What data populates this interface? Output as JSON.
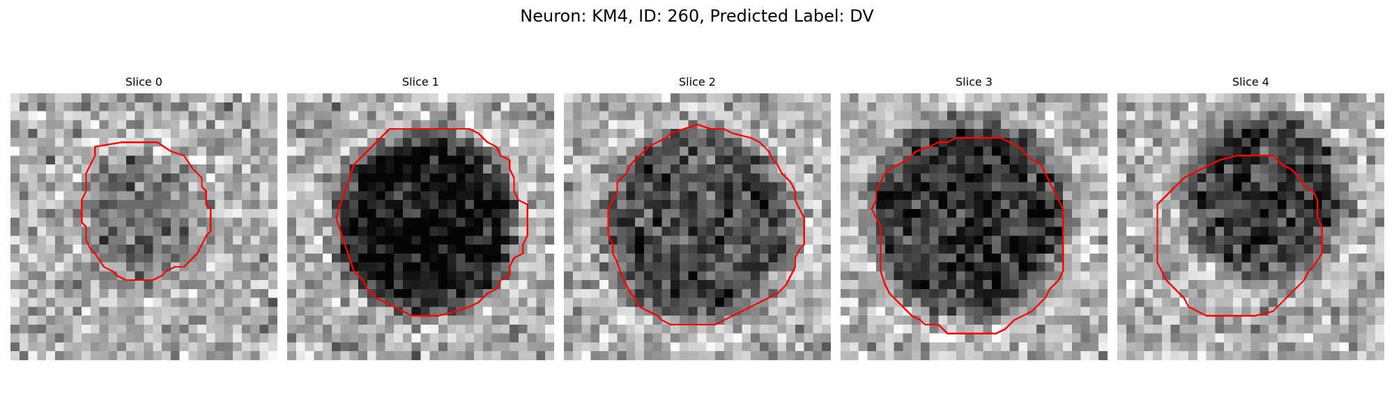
{
  "figure": {
    "title": "Neuron: KM4, ID: 260, Predicted Label: DV"
  },
  "panels": [
    {
      "title": "Slice 0",
      "blob_center": [
        14.5,
        14.0
      ],
      "blob_radius": 7.0,
      "blob_darkness": 0.22,
      "contour": [
        [
          9.5,
          6
        ],
        [
          12.5,
          5.5
        ],
        [
          16.5,
          5.5
        ],
        [
          18,
          6.5
        ],
        [
          19.5,
          7
        ],
        [
          20.5,
          8.5
        ],
        [
          21.5,
          9.5
        ],
        [
          21.5,
          10.5
        ],
        [
          22,
          11
        ],
        [
          22,
          12.5
        ],
        [
          22.5,
          13
        ],
        [
          22.5,
          15.5
        ],
        [
          22,
          16
        ],
        [
          21.5,
          17
        ],
        [
          21,
          18
        ],
        [
          20.5,
          18.5
        ],
        [
          20,
          19
        ],
        [
          19.5,
          19.5
        ],
        [
          18.5,
          19.5
        ],
        [
          17.5,
          20
        ],
        [
          17,
          20.5
        ],
        [
          16,
          21
        ],
        [
          14.5,
          21
        ],
        [
          13,
          21
        ],
        [
          12,
          20.5
        ],
        [
          11.5,
          20
        ],
        [
          10.5,
          19.5
        ],
        [
          9.5,
          18
        ],
        [
          9,
          17.5
        ],
        [
          8.5,
          16.5
        ],
        [
          8.5,
          15
        ],
        [
          8,
          14.5
        ],
        [
          8,
          12
        ],
        [
          8.5,
          11
        ],
        [
          8.5,
          9
        ],
        [
          9,
          8
        ],
        [
          9.5,
          7
        ]
      ]
    },
    {
      "title": "Slice 1",
      "blob_center": [
        15.5,
        14.5
      ],
      "blob_radius": 10.0,
      "blob_darkness": 0.62,
      "contour": [
        [
          11.5,
          4
        ],
        [
          16,
          4
        ],
        [
          20.5,
          4
        ],
        [
          21.5,
          4.5
        ],
        [
          22.5,
          5.5
        ],
        [
          23.5,
          6
        ],
        [
          24,
          7
        ],
        [
          25,
          7.5
        ],
        [
          25,
          8.5
        ],
        [
          25.5,
          9.5
        ],
        [
          25.5,
          11
        ],
        [
          26,
          12
        ],
        [
          27,
          12.5
        ],
        [
          27,
          14.5
        ],
        [
          27,
          16
        ],
        [
          26.5,
          17
        ],
        [
          26.5,
          18
        ],
        [
          25.5,
          18.5
        ],
        [
          25,
          19.5
        ],
        [
          25,
          20.5
        ],
        [
          24,
          21
        ],
        [
          23.5,
          22
        ],
        [
          22.5,
          22.5
        ],
        [
          21.5,
          23.5
        ],
        [
          20.5,
          24
        ],
        [
          19,
          24.5
        ],
        [
          17,
          25
        ],
        [
          15.5,
          25
        ],
        [
          14,
          25
        ],
        [
          13,
          24.5
        ],
        [
          12,
          24
        ],
        [
          11,
          23.5
        ],
        [
          10,
          23
        ],
        [
          9,
          22
        ],
        [
          8.5,
          21
        ],
        [
          7.5,
          20
        ],
        [
          7,
          18.5
        ],
        [
          6.5,
          17
        ],
        [
          6,
          15.5
        ],
        [
          5.5,
          14
        ],
        [
          6,
          12.5
        ],
        [
          6.5,
          11
        ],
        [
          7,
          9.5
        ],
        [
          7.5,
          8
        ],
        [
          8.5,
          7
        ],
        [
          9.5,
          6
        ],
        [
          10.5,
          5
        ],
        [
          11,
          4.5
        ]
      ]
    },
    {
      "title": "Slice 2",
      "blob_center": [
        15.0,
        15.0
      ],
      "blob_radius": 10.5,
      "blob_darkness": 0.4,
      "contour": [
        [
          12,
          4.5
        ],
        [
          13.5,
          4
        ],
        [
          15,
          3.5
        ],
        [
          16.5,
          4
        ],
        [
          18,
          4
        ],
        [
          19,
          4.5
        ],
        [
          21,
          5
        ],
        [
          22,
          5.5
        ],
        [
          23,
          6.5
        ],
        [
          23.5,
          7.5
        ],
        [
          24,
          8
        ],
        [
          24.5,
          9
        ],
        [
          25.5,
          10
        ],
        [
          26,
          11
        ],
        [
          26,
          12
        ],
        [
          26.5,
          13
        ],
        [
          27,
          14
        ],
        [
          27,
          15
        ],
        [
          27,
          16
        ],
        [
          27,
          17
        ],
        [
          26.5,
          17.5
        ],
        [
          26,
          18.5
        ],
        [
          26,
          19.5
        ],
        [
          25.5,
          20.5
        ],
        [
          25,
          21.5
        ],
        [
          24.5,
          22
        ],
        [
          24,
          22.5
        ],
        [
          23,
          23
        ],
        [
          22,
          23.5
        ],
        [
          21,
          24
        ],
        [
          20,
          24.5
        ],
        [
          19,
          25
        ],
        [
          18,
          25.5
        ],
        [
          17,
          26
        ],
        [
          15,
          26
        ],
        [
          13.5,
          26
        ],
        [
          12,
          26
        ],
        [
          11,
          25.5
        ],
        [
          10.5,
          25
        ],
        [
          9.5,
          24.5
        ],
        [
          8.5,
          24
        ],
        [
          8,
          23
        ],
        [
          7.5,
          22.5
        ],
        [
          7,
          21.5
        ],
        [
          6.5,
          20.5
        ],
        [
          6,
          19
        ],
        [
          5.5,
          18
        ],
        [
          5.5,
          17
        ],
        [
          5,
          16
        ],
        [
          5,
          14.5
        ],
        [
          5,
          13
        ],
        [
          5.5,
          12
        ],
        [
          6,
          11
        ],
        [
          6,
          10
        ],
        [
          7,
          9
        ],
        [
          7.5,
          8
        ],
        [
          8.5,
          7
        ],
        [
          9.5,
          6
        ],
        [
          10.5,
          5.5
        ],
        [
          11.5,
          5
        ]
      ]
    },
    {
      "title": "Slice 3",
      "blob_center": [
        14.5,
        14.0
      ],
      "blob_radius": 11.0,
      "blob_darkness": 0.48,
      "contour": [
        [
          10,
          6
        ],
        [
          11,
          5.5
        ],
        [
          12,
          5.5
        ],
        [
          13,
          5
        ],
        [
          14.5,
          5
        ],
        [
          16,
          5
        ],
        [
          18,
          5
        ],
        [
          19,
          5.5
        ],
        [
          20,
          6
        ],
        [
          20.5,
          6.5
        ],
        [
          21.5,
          7.5
        ],
        [
          22.5,
          8
        ],
        [
          23,
          9
        ],
        [
          23.5,
          10
        ],
        [
          24,
          11
        ],
        [
          24.5,
          12
        ],
        [
          25,
          13
        ],
        [
          25,
          14
        ],
        [
          25,
          15
        ],
        [
          25,
          16
        ],
        [
          25,
          17.5
        ],
        [
          25,
          18.5
        ],
        [
          25,
          20
        ],
        [
          24.5,
          21
        ],
        [
          24,
          21.5
        ],
        [
          23.5,
          22
        ],
        [
          23,
          23
        ],
        [
          22,
          24
        ],
        [
          21.5,
          24.5
        ],
        [
          20.5,
          25
        ],
        [
          19.5,
          25.5
        ],
        [
          18.5,
          26.5
        ],
        [
          17.5,
          27
        ],
        [
          15,
          27
        ],
        [
          12,
          27
        ],
        [
          11.5,
          26.5
        ],
        [
          11,
          26
        ],
        [
          9.5,
          26
        ],
        [
          9,
          25.5
        ],
        [
          8,
          25
        ],
        [
          7,
          24
        ],
        [
          6.5,
          23.5
        ],
        [
          5.5,
          22.5
        ],
        [
          5,
          21.5
        ],
        [
          4.5,
          20
        ],
        [
          4.5,
          18.5
        ],
        [
          4.5,
          17
        ],
        [
          4.5,
          15
        ],
        [
          4,
          14
        ],
        [
          3.5,
          13
        ],
        [
          4,
          12
        ],
        [
          4,
          11
        ],
        [
          4.5,
          10
        ],
        [
          5,
          9
        ],
        [
          5.5,
          8.5
        ],
        [
          6.5,
          8
        ],
        [
          7.5,
          7.5
        ],
        [
          8.5,
          6.5
        ]
      ]
    },
    {
      "title": "Slice 4",
      "blob_center": [
        16.5,
        11.5
      ],
      "blob_radius": 9.0,
      "blob_darkness": 0.45,
      "contour": [
        [
          8.5,
          9
        ],
        [
          9.5,
          8.5
        ],
        [
          10.5,
          8
        ],
        [
          11.5,
          7.5
        ],
        [
          13.5,
          7
        ],
        [
          15.5,
          7
        ],
        [
          17.5,
          7
        ],
        [
          18.5,
          8
        ],
        [
          19.5,
          8.5
        ],
        [
          20.5,
          9.5
        ],
        [
          21,
          10.5
        ],
        [
          22,
          11
        ],
        [
          22.5,
          12
        ],
        [
          22.5,
          14
        ],
        [
          23,
          15
        ],
        [
          23,
          16.5
        ],
        [
          23,
          18
        ],
        [
          22,
          19.5
        ],
        [
          21.5,
          20
        ],
        [
          21,
          21
        ],
        [
          20,
          22
        ],
        [
          19,
          23
        ],
        [
          18,
          24
        ],
        [
          17.5,
          24.5
        ],
        [
          15.5,
          25
        ],
        [
          13,
          25
        ],
        [
          10,
          25
        ],
        [
          9,
          24.5
        ],
        [
          8,
          24
        ],
        [
          7.5,
          23
        ],
        [
          6.5,
          22
        ],
        [
          5.5,
          21
        ],
        [
          5,
          20
        ],
        [
          4.5,
          19
        ],
        [
          4.5,
          17.5
        ],
        [
          4.5,
          16
        ],
        [
          4.5,
          14
        ],
        [
          4.5,
          12.5
        ],
        [
          5,
          12
        ],
        [
          5.5,
          11.5
        ],
        [
          6.5,
          10.5
        ],
        [
          7,
          10
        ],
        [
          7.5,
          9.5
        ]
      ]
    }
  ],
  "colors": {
    "contour": "#ff0000",
    "background": "#ffffff"
  }
}
